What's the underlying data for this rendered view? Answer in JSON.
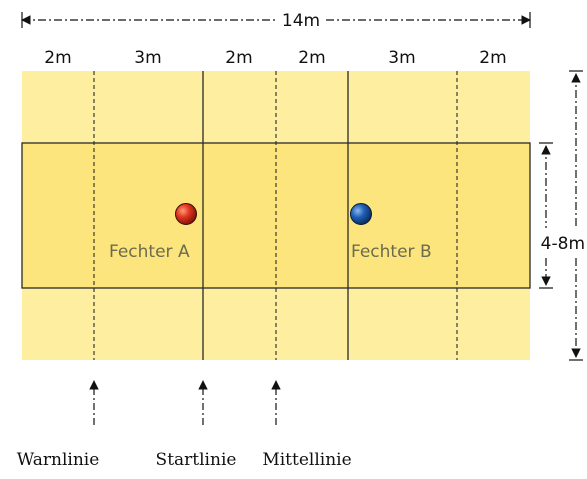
{
  "total_length": "14m",
  "width_range": "4-8m",
  "segments": [
    "2m",
    "3m",
    "2m",
    "2m",
    "3m",
    "2m"
  ],
  "fencers": [
    {
      "label": "Fechter A",
      "color": "#d42a1a"
    },
    {
      "label": "Fechter B",
      "color": "#1f5fb4"
    }
  ],
  "lines": [
    "Warnlinie",
    "Startlinie",
    "Mittellinie"
  ],
  "colors": {
    "outer_area": "#fdeea0",
    "inner_area": "#fce57c",
    "border": "#2a2a2a"
  }
}
